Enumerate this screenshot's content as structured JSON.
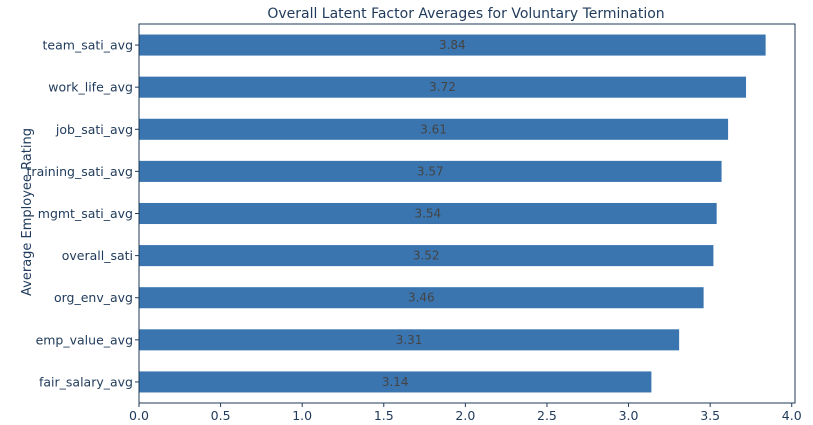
{
  "chart_data": {
    "type": "bar",
    "orientation": "horizontal",
    "title": "Overall Latent Factor Averages for Voluntary Termination",
    "xlabel": "",
    "ylabel": "Average Employee Rating",
    "categories": [
      "team_sati_avg",
      "work_life_avg",
      "job_sati_avg",
      "training_sati_avg",
      "mgmt_sati_avg",
      "overall_sati",
      "org_env_avg",
      "emp_value_avg",
      "fair_salary_avg"
    ],
    "values": [
      3.84,
      3.72,
      3.61,
      3.57,
      3.54,
      3.52,
      3.46,
      3.31,
      3.14
    ],
    "value_labels": [
      "3.84",
      "3.72",
      "3.61",
      "3.57",
      "3.54",
      "3.52",
      "3.46",
      "3.31",
      "3.14"
    ],
    "xlim": [
      0,
      4.02
    ],
    "xticks": [
      "0.0",
      "0.5",
      "1.0",
      "1.5",
      "2.0",
      "2.5",
      "3.0",
      "3.5",
      "4.0"
    ],
    "grid": false,
    "legend": "none",
    "bar_color": "#3a75b0",
    "axis_color": "#1f3a5a"
  }
}
